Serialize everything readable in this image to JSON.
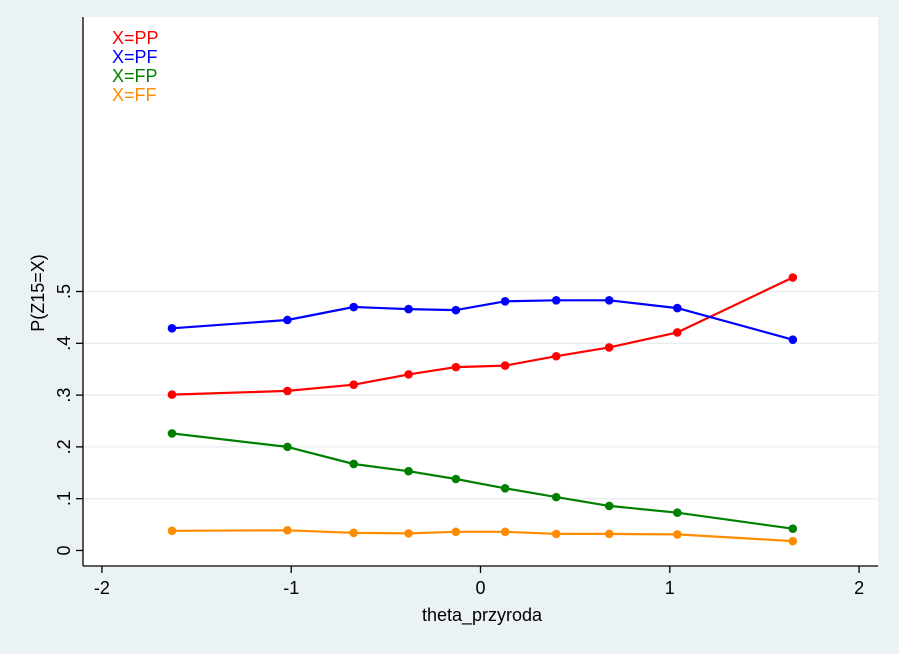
{
  "chart_data": {
    "type": "line",
    "xlabel": "theta_przyroda",
    "ylabel": "P(Z15=X)",
    "xlim": [
      -2.1,
      2.1
    ],
    "ylim": [
      -0.03,
      1.03
    ],
    "xticks": [
      -2,
      -1,
      0,
      1,
      2
    ],
    "xtick_labels": [
      "-2",
      "-1",
      "0",
      "1",
      "2"
    ],
    "yticks": [
      0,
      0.1,
      0.2,
      0.3,
      0.4,
      0.5
    ],
    "ytick_labels": [
      "0",
      ".1",
      ".2",
      ".3",
      ".4",
      ".5"
    ],
    "grid": true,
    "legend_position": "top-left",
    "x": [
      -1.63,
      -1.02,
      -0.67,
      -0.38,
      -0.13,
      0.13,
      0.4,
      0.68,
      1.04,
      1.65
    ],
    "series": [
      {
        "name": "X=PP",
        "color": "#ff0000",
        "values": [
          0.301,
          0.308,
          0.32,
          0.34,
          0.354,
          0.357,
          0.375,
          0.392,
          0.421,
          0.527
        ]
      },
      {
        "name": "X=PF",
        "color": "#0000ff",
        "values": [
          0.429,
          0.445,
          0.47,
          0.466,
          0.464,
          0.481,
          0.483,
          0.483,
          0.468,
          0.407
        ]
      },
      {
        "name": "X=FP",
        "color": "#008000",
        "values": [
          0.226,
          0.2,
          0.167,
          0.153,
          0.138,
          0.12,
          0.103,
          0.086,
          0.073,
          0.042
        ]
      },
      {
        "name": "X=FF",
        "color": "#ff8c00",
        "values": [
          0.038,
          0.039,
          0.034,
          0.033,
          0.036,
          0.036,
          0.032,
          0.032,
          0.031,
          0.018
        ]
      }
    ]
  }
}
